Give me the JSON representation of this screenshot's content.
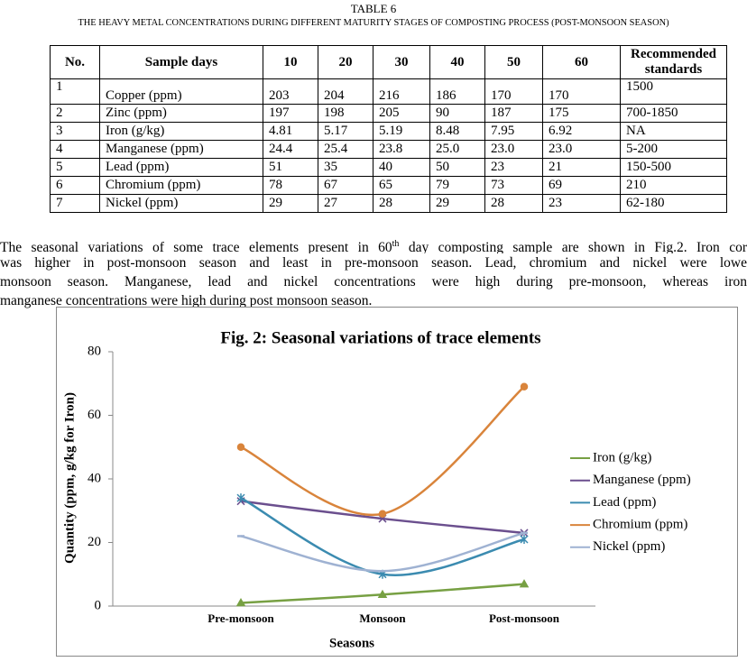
{
  "header": {
    "label": "TABLE 6",
    "title": "THE HEAVY METAL CONCENTRATIONS DURING DIFFERENT MATURITY STAGES OF COMPOSTING PROCESS (POST-MONSOON SEASON)"
  },
  "table": {
    "columns": [
      "No.",
      "Sample days",
      "10",
      "20",
      "30",
      "40",
      "50",
      "60",
      "Recommended standards"
    ],
    "rows": [
      [
        "1",
        "Copper (ppm)",
        "203",
        "204",
        "216",
        "186",
        "170",
        "170",
        "1500"
      ],
      [
        "2",
        "Zinc (ppm)",
        "197",
        "198",
        "205",
        "90",
        "187",
        "175",
        "700-1850"
      ],
      [
        "3",
        "Iron (g/kg)",
        "4.81",
        "5.17",
        "5.19",
        "8.48",
        "7.95",
        "6.92",
        "NA"
      ],
      [
        "4",
        "Manganese (ppm)",
        "24.4",
        "25.4",
        "23.8",
        "25.0",
        "23.0",
        "23.0",
        "5-200"
      ],
      [
        "5",
        "Lead (ppm)",
        "51",
        "35",
        "40",
        "50",
        "23",
        "21",
        "150-500"
      ],
      [
        "6",
        "Chromium (ppm)",
        "78",
        "67",
        "65",
        "79",
        "73",
        "69",
        "210"
      ],
      [
        "7",
        "Nickel (ppm)",
        "29",
        "27",
        "28",
        "29",
        "28",
        "23",
        "62-180"
      ]
    ]
  },
  "paragraph": {
    "first": {
      "text": "The seasonal variations of some trace elements present in 60",
      "sup": "th",
      "rest": "day composting sample are shown in Fig.2. Iron cor"
    },
    "lines": [
      "was higher in post-monsoon season and least in pre-monsoon season. Lead, chromium and nickel were lowe",
      "monsoon season. Manganese, lead and nickel concentrations were high during pre-monsoon, whereas iron",
      "manganese concentrations were high during post monsoon season."
    ]
  },
  "chart_data": {
    "type": "line",
    "title": "Fig. 2: Seasonal variations of trace elements",
    "x_label": "Seasons",
    "y_label": "Quantity (ppm, g/kg for Iron)",
    "categories": [
      "Pre-monsoon",
      "Monsoon",
      "Post-monsoon"
    ],
    "series": [
      {
        "name": "Iron (g/kg)",
        "color": "#77a043",
        "marker": "triangle",
        "values": [
          1,
          3.6,
          6.92
        ]
      },
      {
        "name": "Manganese (ppm)",
        "color": "#6b4f8e",
        "marker": "x",
        "values": [
          33,
          27.5,
          23
        ]
      },
      {
        "name": "Lead (ppm)",
        "color": "#3b8bb0",
        "marker": "asterisk",
        "values": [
          34,
          10,
          21
        ]
      },
      {
        "name": "Chromium (ppm)",
        "color": "#d9843b",
        "marker": "circle",
        "values": [
          50,
          29,
          69
        ]
      },
      {
        "name": "Nickel (ppm)",
        "color": "#9fb2d2",
        "marker": "dash",
        "values": [
          22,
          11,
          23
        ]
      }
    ],
    "ylim": [
      0,
      80
    ],
    "yticks": [
      0,
      20,
      40,
      60,
      80
    ],
    "smooth": true,
    "legend": "right"
  }
}
